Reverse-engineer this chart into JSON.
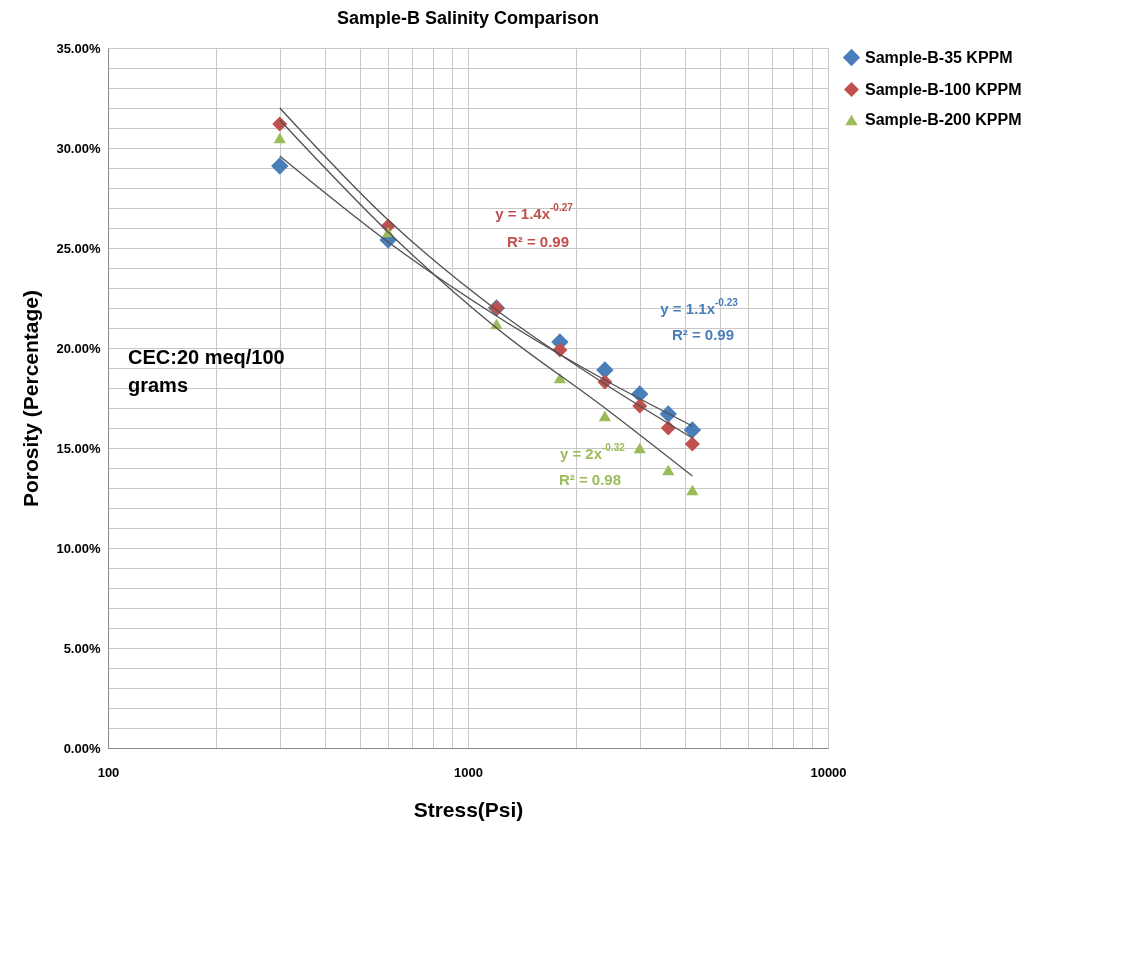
{
  "chart_data": {
    "type": "scatter",
    "title": "Sample-B Salinity Comparison",
    "xlabel": "Stress(Psi)",
    "ylabel": "Porosity (Percentage)",
    "log": "x",
    "grid": true,
    "legend": "right",
    "xlim": [
      100,
      10000
    ],
    "ylim": [
      0,
      35
    ],
    "xticks": [
      100,
      {
        "value": 200,
        "label": null
      },
      {
        "value": 300,
        "label": null
      },
      {
        "value": 400,
        "label": null
      },
      {
        "value": 500,
        "label": null
      },
      {
        "value": 600,
        "label": null
      },
      {
        "value": 700,
        "label": null
      },
      {
        "value": 800,
        "label": null
      },
      {
        "value": 900,
        "label": null
      },
      1000,
      {
        "value": 2000,
        "label": null
      },
      {
        "value": 3000,
        "label": null
      },
      {
        "value": 4000,
        "label": null
      },
      {
        "value": 5000,
        "label": null
      },
      {
        "value": 6000,
        "label": null
      },
      {
        "value": 7000,
        "label": null
      },
      {
        "value": 8000,
        "label": null
      },
      {
        "value": 9000,
        "label": null
      },
      10000
    ],
    "yticks": [
      {
        "value": 0,
        "label": "0.00%"
      },
      {
        "value": 1,
        "label": null
      },
      {
        "value": 2,
        "label": null
      },
      {
        "value": 3,
        "label": null
      },
      {
        "value": 4,
        "label": null
      },
      {
        "value": 5,
        "label": "5.00%"
      },
      {
        "value": 6,
        "label": null
      },
      {
        "value": 7,
        "label": null
      },
      {
        "value": 8,
        "label": null
      },
      {
        "value": 9,
        "label": null
      },
      {
        "value": 10,
        "label": "10.00%"
      },
      {
        "value": 11,
        "label": null
      },
      {
        "value": 12,
        "label": null
      },
      {
        "value": 13,
        "label": null
      },
      {
        "value": 14,
        "label": null
      },
      {
        "value": 15,
        "label": "15.00%"
      },
      {
        "value": 16,
        "label": null
      },
      {
        "value": 17,
        "label": null
      },
      {
        "value": 18,
        "label": null
      },
      {
        "value": 19,
        "label": null
      },
      {
        "value": 20,
        "label": "20.00%"
      },
      {
        "value": 21,
        "label": null
      },
      {
        "value": 22,
        "label": null
      },
      {
        "value": 23,
        "label": null
      },
      {
        "value": 24,
        "label": null
      },
      {
        "value": 25,
        "label": "25.00%"
      },
      {
        "value": 26,
        "label": null
      },
      {
        "value": 27,
        "label": null
      },
      {
        "value": 28,
        "label": null
      },
      {
        "value": 29,
        "label": null
      },
      {
        "value": 30,
        "label": "30.00%"
      },
      {
        "value": 31,
        "label": null
      },
      {
        "value": 32,
        "label": null
      },
      {
        "value": 33,
        "label": null
      },
      {
        "value": 34,
        "label": null
      },
      {
        "value": 35,
        "label": "35.00%"
      }
    ],
    "x": [
      300,
      600,
      1200,
      1800,
      2400,
      3000,
      3600,
      4200
    ],
    "series": [
      {
        "name": "Sample-B-35 KPPM",
        "color": "#4a7ebb",
        "marker": "diamond",
        "values": [
          29.1,
          25.4,
          22.0,
          20.3,
          18.9,
          17.7,
          16.7,
          15.9
        ]
      },
      {
        "name": "Sample-B-100 KPPM",
        "color": "#c0504d",
        "marker": "diamond",
        "values": [
          31.2,
          26.1,
          22.0,
          19.9,
          18.3,
          17.1,
          16.0,
          15.2
        ]
      },
      {
        "name": "Sample-B-200 KPPM",
        "color": "#9bbb59",
        "marker": "triangle",
        "values": [
          30.5,
          25.8,
          21.2,
          18.5,
          16.6,
          15.0,
          13.9,
          12.9
        ]
      },
      {
        "type": "line",
        "color": "#505050",
        "x": [
          300,
          600,
          1200,
          2400,
          4200
        ],
        "values": [
          29.6,
          25.3,
          21.6,
          18.4,
          16.1
        ]
      },
      {
        "type": "line",
        "color": "#505050",
        "x": [
          300,
          600,
          1200,
          2400,
          4200
        ],
        "values": [
          32.0,
          26.4,
          21.9,
          18.2,
          15.5
        ]
      },
      {
        "type": "line",
        "color": "#505050",
        "x": [
          300,
          600,
          1200,
          2400,
          4200
        ],
        "values": [
          31.4,
          25.8,
          21.0,
          17.0,
          13.6
        ]
      }
    ],
    "annotations": [
      "y = 1.1x$^{-0.23}$",
      "R² = 0.99",
      "y = 1.4x$^{-0.27}$",
      "R² = 0.99",
      "y = 2x$^{-0.32}$",
      "R² = 0.98",
      "CEC:20 meq/100\ngrams"
    ]
  }
}
